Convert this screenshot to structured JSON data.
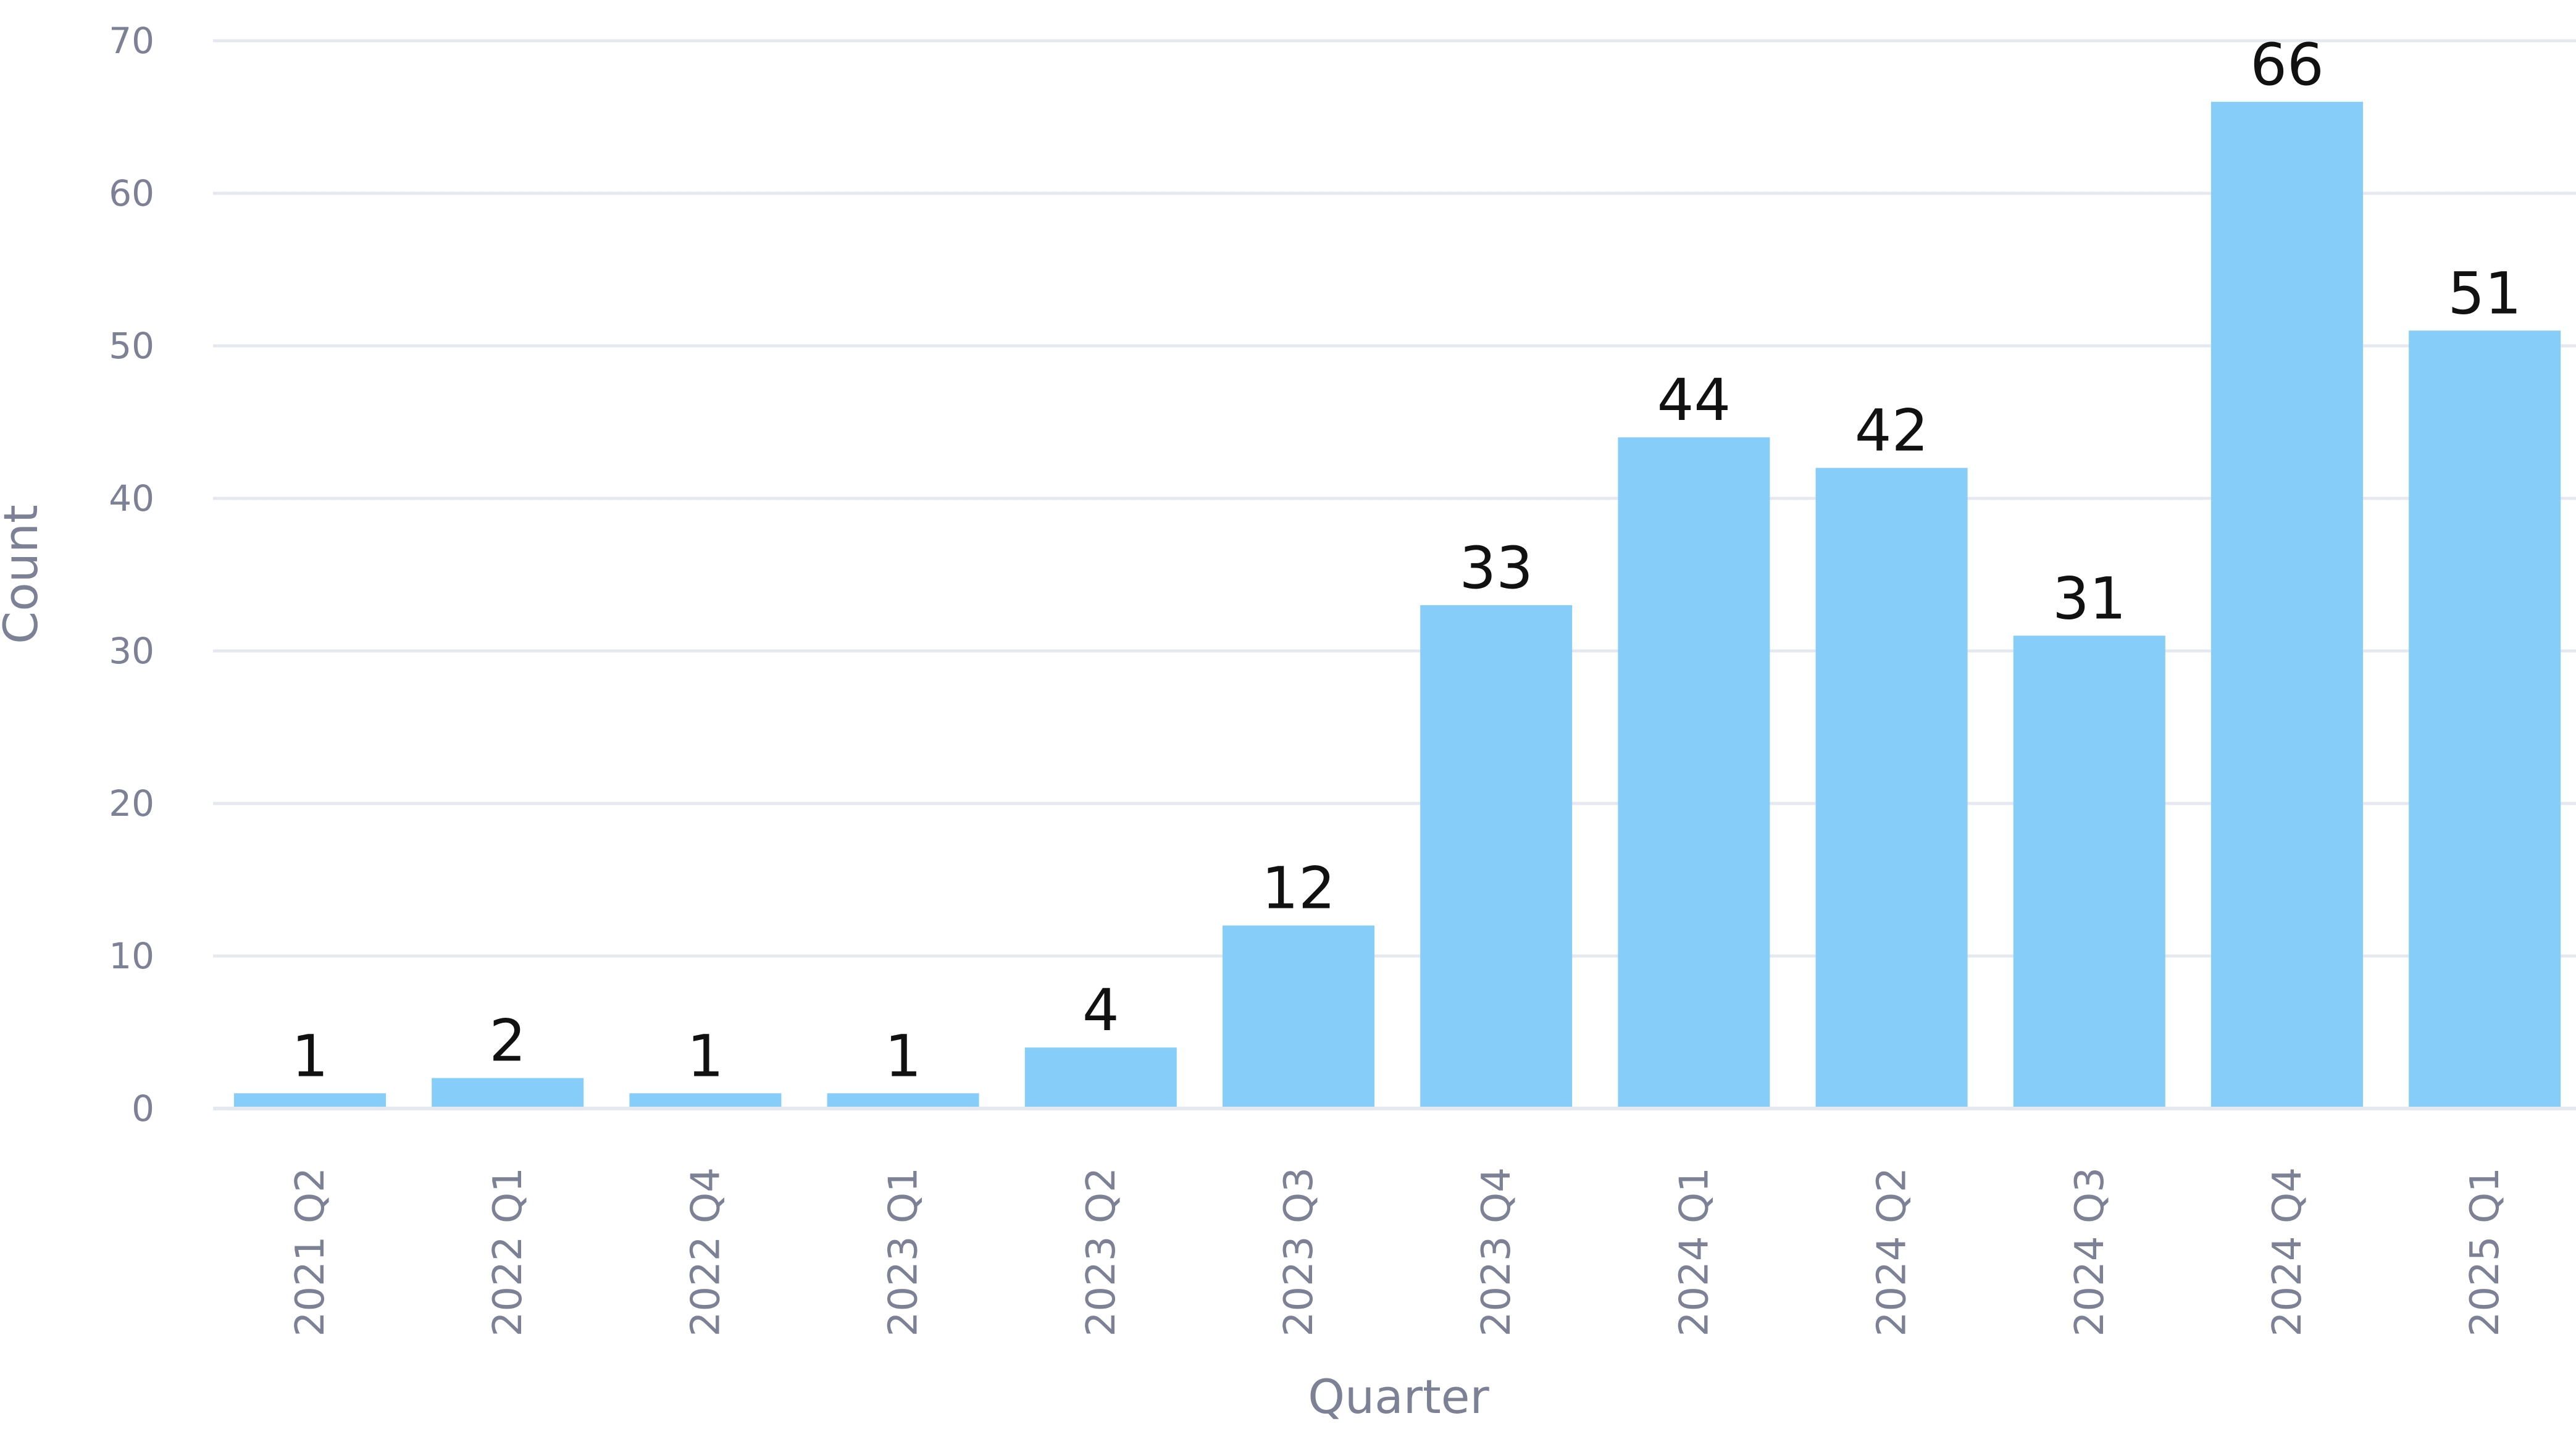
{
  "chart_data": {
    "type": "bar",
    "title": "",
    "xlabel": "Quarter",
    "ylabel": "Count",
    "ylim": [
      0,
      70
    ],
    "yticks": [
      0,
      10,
      20,
      30,
      40,
      50,
      60,
      70
    ],
    "grid": true,
    "legend": "none",
    "bar_color": "#87cdf9",
    "categories": [
      "2021 Q2",
      "2022 Q1",
      "2022 Q4",
      "2023 Q1",
      "2023 Q2",
      "2023 Q3",
      "2023 Q4",
      "2024 Q1",
      "2024 Q2",
      "2024 Q3",
      "2024 Q4",
      "2025 Q1"
    ],
    "values": [
      1,
      2,
      1,
      1,
      4,
      12,
      33,
      44,
      42,
      31,
      66,
      51
    ],
    "data_labels": [
      "1",
      "2",
      "1",
      "1",
      "4",
      "12",
      "33",
      "44",
      "42",
      "31",
      "66",
      "51"
    ]
  }
}
